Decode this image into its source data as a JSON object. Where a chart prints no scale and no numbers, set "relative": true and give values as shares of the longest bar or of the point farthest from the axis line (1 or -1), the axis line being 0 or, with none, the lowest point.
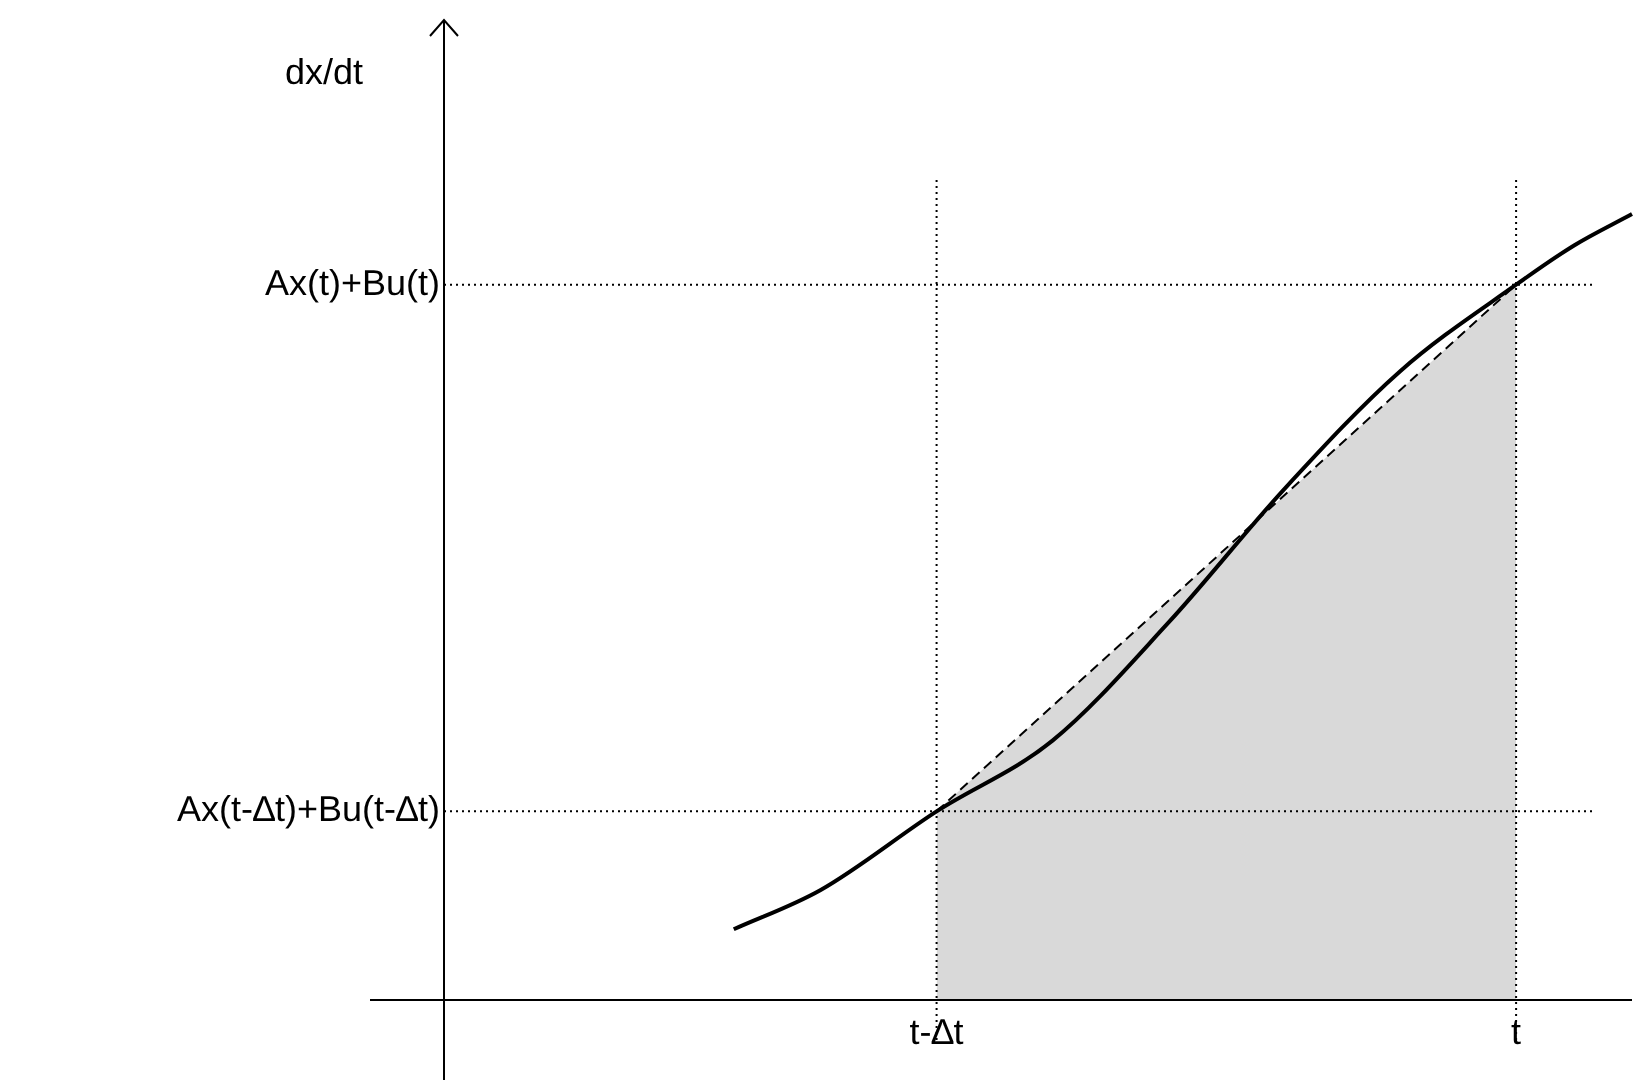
{
  "chart_data": {
    "type": "line",
    "ylabel": "dx/dt",
    "relative": true,
    "legend": false,
    "categories": [
      null,
      null,
      null,
      null,
      null,
      null,
      null,
      null,
      null,
      null,
      null,
      null,
      null,
      null,
      null,
      null,
      null,
      "t-∆t",
      null,
      null,
      null,
      null,
      null,
      null,
      null,
      null,
      null,
      null,
      null,
      null,
      null,
      null,
      null,
      null,
      null,
      null,
      null,
      "t",
      null,
      null,
      null,
      null
    ],
    "series": [
      {
        "type": "line",
        "color": "#000000",
        "values": [
          null,
          null,
          null,
          null,
          null,
          null,
          null,
          null,
          null,
          null,
          0.09,
          null,
          null,
          0.14,
          null,
          null,
          null,
          0.24,
          null,
          null,
          null,
          0.33,
          null,
          null,
          null,
          0.48,
          null,
          null,
          null,
          0.65,
          null,
          null,
          null,
          0.8,
          null,
          null,
          null,
          0.91,
          null,
          0.96,
          null,
          1
        ]
      },
      {
        "type": "area",
        "color": "#000000",
        "line_style": "dashed",
        "values": [
          null,
          null,
          null,
          null,
          null,
          null,
          null,
          null,
          null,
          null,
          null,
          null,
          null,
          null,
          null,
          null,
          null,
          0.24,
          null,
          null,
          null,
          null,
          null,
          null,
          null,
          null,
          null,
          null,
          null,
          null,
          null,
          null,
          null,
          null,
          null,
          null,
          null,
          0.91,
          null,
          null,
          null,
          null
        ]
      }
    ],
    "ref_lines": [
      {
        "axis": "x",
        "value": "t-∆t",
        "line_style": "dotted"
      },
      {
        "axis": "x",
        "value": "t",
        "line_style": "dotted"
      },
      {
        "axis": "y",
        "value": 0.24,
        "label": "Ax(t-∆t)+Bu(t-∆t)",
        "line_style": "dotted"
      },
      {
        "axis": "y",
        "value": 0.91,
        "label": "Ax(t)+Bu(t)",
        "line_style": "dotted"
      }
    ]
  }
}
